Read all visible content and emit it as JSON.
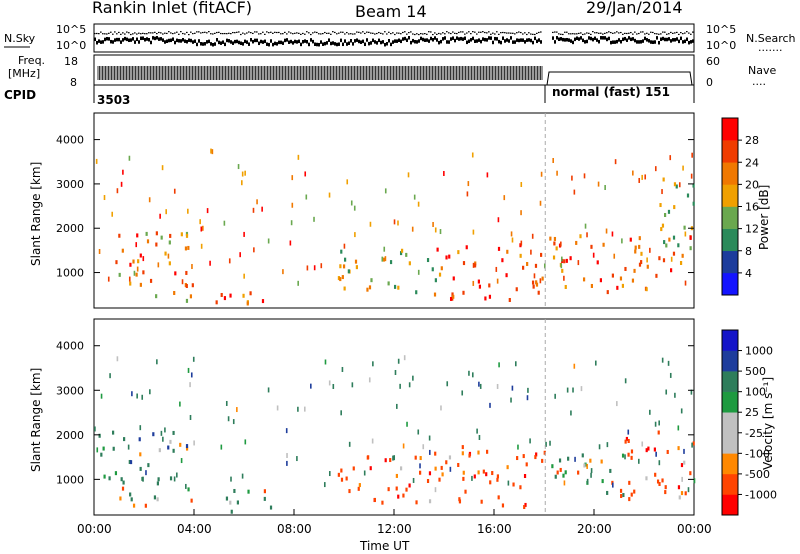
{
  "header": {
    "station": "Rankin Inlet (fitACF)",
    "beam": "Beam 14",
    "date": "29/Jan/2014"
  },
  "noise_panel": {
    "left_label": "N.Sky",
    "right_label": "N.Search",
    "right_dots": ".......",
    "ytick_top": "10^5",
    "ytick_bottom": "10^0",
    "rtick_top": "10^5",
    "rtick_bottom": "10^0"
  },
  "freq_panel": {
    "label_line1": "Freq.",
    "label_line2": "[MHz]",
    "right_label": "Nave",
    "right_dots": "....",
    "ytick_top": "18",
    "ytick_bottom": "8",
    "rtick_top": "60",
    "rtick_bottom": "0"
  },
  "cpid_panel": {
    "label": "CPID",
    "seg1": "3503",
    "seg2": "normal (fast) 151"
  },
  "time_axis": {
    "ticks": [
      "00:00",
      "04:00",
      "08:00",
      "12:00",
      "16:00",
      "20:00",
      "00:00"
    ],
    "label": "Time UT"
  },
  "colors": {
    "power": [
      "#1414ff",
      "#1c3c9c",
      "#2a8a5a",
      "#6aa84f",
      "#f0a000",
      "#f07800",
      "#f03c00",
      "#ff0000"
    ],
    "velocity": [
      "#ff0000",
      "#ff4400",
      "#ff8800",
      "#c0c0c0",
      "#c0c0c0",
      "#1e9a40",
      "#2e7d5b",
      "#1e3d9c",
      "#1414c8"
    ],
    "gap_marker": "#aaaaaa"
  },
  "chart_data": [
    {
      "type": "heatmap",
      "name": "power-panel",
      "xlabel": "",
      "ylabel": "Slant Range [km]",
      "xlim": [
        0,
        24
      ],
      "ylim": [
        200,
        4600
      ],
      "yticks": [
        "1000",
        "2000",
        "3000",
        "4000"
      ],
      "ytick_values": [
        1000,
        2000,
        3000,
        4000
      ],
      "colorbar": {
        "label": "Power [dB]",
        "ticks": [
          "28",
          "24",
          "20",
          "16",
          "12",
          "8",
          "4"
        ],
        "range": [
          0,
          32
        ]
      },
      "regions": [
        {
          "t": [
            0.1,
            3.8
          ],
          "r": [
            900,
            2000
          ],
          "level": 20
        },
        {
          "t": [
            1.0,
            4.0
          ],
          "r": [
            400,
            900
          ],
          "level": 18
        },
        {
          "t": [
            4.8,
            7.2
          ],
          "r": [
            250,
            800
          ],
          "level": 24
        },
        {
          "t": [
            9.7,
            14.0
          ],
          "r": [
            600,
            1600
          ],
          "level": 14
        },
        {
          "t": [
            13.5,
            18.0
          ],
          "r": [
            400,
            1700
          ],
          "level": 24
        },
        {
          "t": [
            18.2,
            24.0
          ],
          "r": [
            600,
            1900
          ],
          "level": 22
        },
        {
          "t": [
            22.5,
            24.0
          ],
          "r": [
            1500,
            3400
          ],
          "level": 10
        }
      ]
    },
    {
      "type": "heatmap",
      "name": "velocity-panel",
      "xlabel": "Time UT",
      "ylabel": "Slant Range [km]",
      "xlim": [
        0,
        24
      ],
      "ylim": [
        200,
        4600
      ],
      "yticks": [
        "1000",
        "2000",
        "3000",
        "4000"
      ],
      "ytick_values": [
        1000,
        2000,
        3000,
        4000
      ],
      "colorbar": {
        "label": "Velocity [m s⁻¹]",
        "ticks": [
          "1000",
          "500",
          "100",
          "25",
          "-25",
          "-100",
          "-500",
          "-1000"
        ],
        "range": [
          -1000,
          1000
        ]
      },
      "regions": [
        {
          "t": [
            0.1,
            3.8
          ],
          "r": [
            900,
            2100
          ],
          "level": 250
        },
        {
          "t": [
            1.0,
            4.0
          ],
          "r": [
            400,
            900
          ],
          "level": 60
        },
        {
          "t": [
            4.8,
            7.2
          ],
          "r": [
            250,
            800
          ],
          "level": 60
        },
        {
          "t": [
            9.7,
            14.0
          ],
          "r": [
            500,
            1600
          ],
          "level": -300
        },
        {
          "t": [
            13.5,
            18.0
          ],
          "r": [
            400,
            1800
          ],
          "level": -300
        },
        {
          "t": [
            18.2,
            21.5
          ],
          "r": [
            600,
            1700
          ],
          "level": 0
        },
        {
          "t": [
            21.0,
            24.0
          ],
          "r": [
            600,
            2100
          ],
          "level": -300
        }
      ]
    }
  ]
}
